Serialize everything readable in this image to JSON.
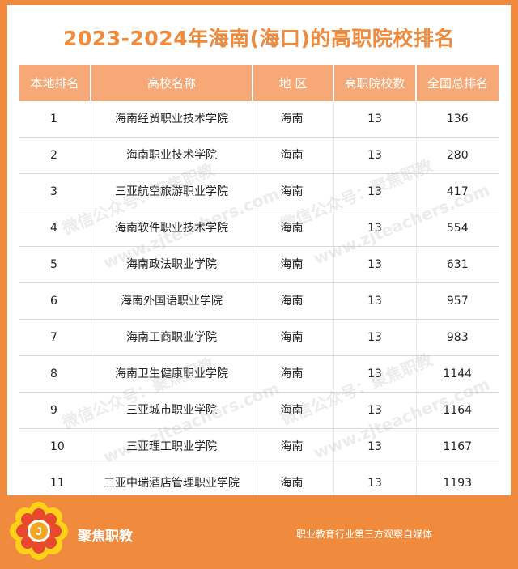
{
  "title": "2023-2024年海南(海口)的高职院校排名",
  "table": {
    "headers": [
      "本地排名",
      "高校名称",
      "地 区",
      "高职院校数",
      "全国总排名"
    ],
    "rows": [
      {
        "rank": "1",
        "name": "海南经贸职业技术学院",
        "region": "海南",
        "count": "13",
        "national": "136"
      },
      {
        "rank": "2",
        "name": "海南职业技术学院",
        "region": "海南",
        "count": "13",
        "national": "280"
      },
      {
        "rank": "3",
        "name": "三亚航空旅游职业学院",
        "region": "海南",
        "count": "13",
        "national": "417"
      },
      {
        "rank": "4",
        "name": "海南软件职业技术学院",
        "region": "海南",
        "count": "13",
        "national": "554"
      },
      {
        "rank": "5",
        "name": "海南政法职业学院",
        "region": "海南",
        "count": "13",
        "national": "631"
      },
      {
        "rank": "6",
        "name": "海南外国语职业学院",
        "region": "海南",
        "count": "13",
        "national": "957"
      },
      {
        "rank": "7",
        "name": "海南工商职业学院",
        "region": "海南",
        "count": "13",
        "national": "983"
      },
      {
        "rank": "8",
        "name": "海南卫生健康职业学院",
        "region": "海南",
        "count": "13",
        "national": "1144"
      },
      {
        "rank": "9",
        "name": "三亚城市职业学院",
        "region": "海南",
        "count": "13",
        "national": "1164"
      },
      {
        "rank": "10",
        "name": "三亚理工职业学院",
        "region": "海南",
        "count": "13",
        "national": "1167"
      },
      {
        "rank": "11",
        "name": "三亚中瑞酒店管理职业学院",
        "region": "海南",
        "count": "13",
        "national": "1193"
      }
    ]
  },
  "watermarks": [
    "微信公众号：聚焦职教",
    "www.zjteachers.com"
  ],
  "footer": {
    "brand": "聚焦职教",
    "tagline": "职业教育行业第三方观察自媒体",
    "logo_letter": "J"
  },
  "colors": {
    "accent": "#f08a3c",
    "header_bg": "#f6a977"
  }
}
